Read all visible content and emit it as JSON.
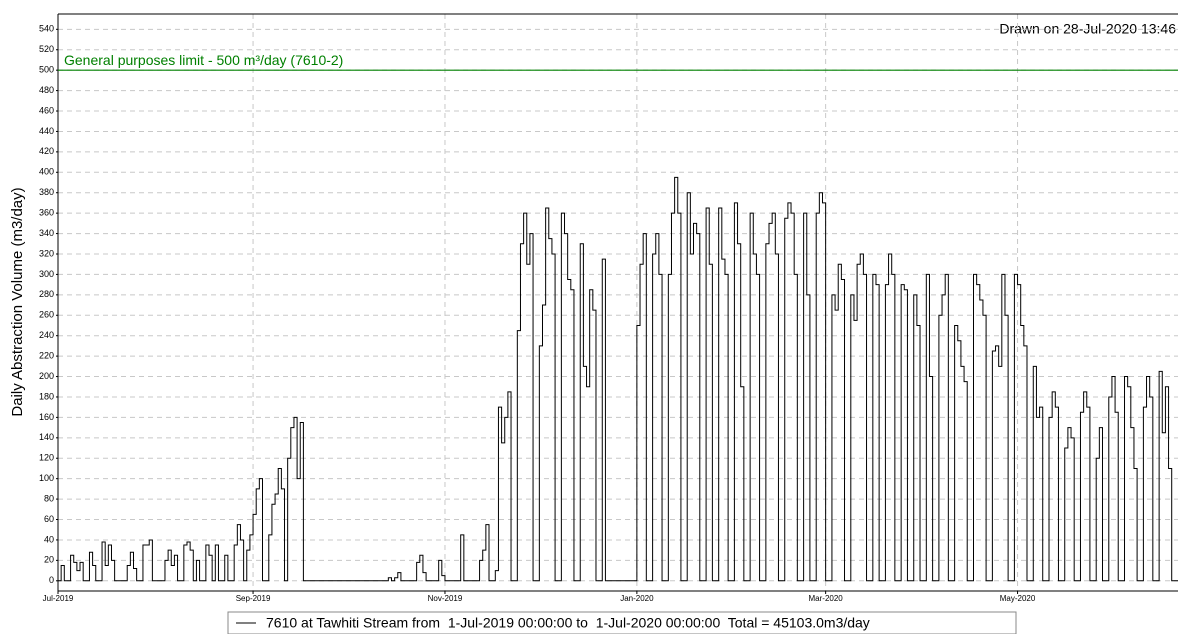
{
  "chart_data": {
    "type": "step",
    "annotation": "Drawn on 28-Jul-2020 13:46",
    "ylabel": "Daily Abstraction Volume (m3/day)",
    "limit": {
      "value": 500,
      "label": "General purposes limit - 500 m³/day (7610-2)",
      "color": "#008000"
    },
    "series": [
      {
        "name": "7610 at Tawhiti Stream from  1-Jul-2019 00:00:00 to  1-Jul-2020 00:00:00  Total = 45103.0m3/day",
        "color": "#000000",
        "values": [
          0,
          15,
          0,
          0,
          25,
          18,
          10,
          18,
          0,
          0,
          28,
          15,
          0,
          0,
          38,
          15,
          35,
          20,
          0,
          0,
          0,
          0,
          15,
          28,
          12,
          0,
          0,
          35,
          35,
          40,
          0,
          0,
          0,
          0,
          20,
          30,
          15,
          25,
          0,
          0,
          35,
          38,
          30,
          0,
          20,
          0,
          0,
          35,
          25,
          0,
          35,
          0,
          0,
          25,
          0,
          0,
          35,
          55,
          40,
          0,
          30,
          45,
          65,
          90,
          100,
          0,
          0,
          45,
          75,
          85,
          110,
          90,
          0,
          120,
          150,
          160,
          100,
          155,
          0,
          0,
          0,
          0,
          0,
          0,
          0,
          0,
          0,
          0,
          0,
          0,
          0,
          0,
          0,
          0,
          0,
          0,
          0,
          0,
          0,
          0,
          0,
          0,
          0,
          0,
          0,
          3,
          0,
          3,
          8,
          0,
          0,
          0,
          0,
          0,
          18,
          25,
          8,
          0,
          0,
          0,
          0,
          20,
          5,
          0,
          0,
          0,
          0,
          0,
          45,
          0,
          0,
          0,
          0,
          0,
          20,
          30,
          55,
          0,
          0,
          10,
          170,
          135,
          160,
          185,
          0,
          0,
          245,
          330,
          360,
          310,
          340,
          0,
          0,
          230,
          270,
          365,
          335,
          320,
          0,
          0,
          360,
          340,
          295,
          285,
          0,
          0,
          330,
          210,
          190,
          285,
          265,
          0,
          0,
          315,
          0,
          0,
          0,
          0,
          0,
          0,
          0,
          0,
          0,
          0,
          250,
          310,
          340,
          0,
          0,
          320,
          340,
          300,
          0,
          0,
          300,
          360,
          395,
          360,
          0,
          0,
          380,
          320,
          350,
          340,
          0,
          0,
          365,
          310,
          0,
          0,
          365,
          315,
          300,
          0,
          0,
          370,
          330,
          190,
          0,
          0,
          360,
          320,
          300,
          0,
          0,
          330,
          350,
          360,
          320,
          0,
          0,
          355,
          370,
          360,
          300,
          0,
          0,
          360,
          280,
          0,
          0,
          360,
          380,
          370,
          0,
          0,
          280,
          265,
          310,
          295,
          0,
          0,
          280,
          255,
          310,
          320,
          300,
          0,
          0,
          300,
          290,
          0,
          0,
          290,
          320,
          300,
          0,
          0,
          290,
          285,
          0,
          0,
          280,
          250,
          0,
          0,
          300,
          200,
          0,
          0,
          260,
          280,
          300,
          0,
          0,
          250,
          235,
          210,
          195,
          0,
          0,
          300,
          290,
          275,
          260,
          0,
          0,
          225,
          230,
          210,
          300,
          260,
          0,
          0,
          300,
          290,
          250,
          230,
          0,
          0,
          210,
          160,
          170,
          0,
          0,
          160,
          185,
          170,
          0,
          0,
          130,
          150,
          140,
          0,
          0,
          165,
          185,
          170,
          0,
          0,
          120,
          150,
          0,
          0,
          180,
          200,
          165,
          0,
          0,
          200,
          190,
          150,
          110,
          0,
          0,
          170,
          200,
          180,
          0,
          0,
          205,
          145,
          190,
          110,
          0,
          0
        ]
      }
    ],
    "xlim": [
      0,
      356
    ],
    "xticks": [
      {
        "value": 0,
        "label": "Jul-2019"
      },
      {
        "value": 62,
        "label": "Sep-2019"
      },
      {
        "value": 123,
        "label": "Nov-2019"
      },
      {
        "value": 184,
        "label": "Jan-2020"
      },
      {
        "value": 244,
        "label": "Mar-2020"
      },
      {
        "value": 305,
        "label": "May-2020"
      }
    ],
    "ylim": [
      -10,
      555
    ],
    "yticks": [
      0,
      20,
      40,
      60,
      80,
      100,
      120,
      140,
      160,
      180,
      200,
      220,
      240,
      260,
      280,
      300,
      320,
      340,
      360,
      380,
      400,
      420,
      440,
      460,
      480,
      500,
      520,
      540
    ],
    "grid": true
  }
}
